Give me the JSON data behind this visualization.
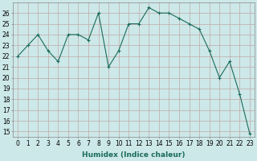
{
  "x": [
    0,
    1,
    2,
    3,
    4,
    5,
    6,
    7,
    8,
    9,
    10,
    11,
    12,
    13,
    14,
    15,
    16,
    17,
    18,
    19,
    20,
    21,
    22,
    23
  ],
  "y": [
    22,
    23,
    24,
    22.5,
    21.5,
    24,
    24,
    23.5,
    26,
    21,
    22.5,
    25,
    25,
    26.5,
    26,
    26,
    25.5,
    25,
    24.5,
    22.5,
    20,
    21.5,
    18.5,
    14.8
  ],
  "line_color": "#1a6b5a",
  "marker": "+",
  "bg_color": "#cde8e8",
  "grid_color": "#c0a8a8",
  "xlabel": "Humidex (Indice chaleur)",
  "ylabel_ticks": [
    15,
    16,
    17,
    18,
    19,
    20,
    21,
    22,
    23,
    24,
    25,
    26
  ],
  "ylim": [
    14.5,
    27.0
  ],
  "xlim": [
    -0.5,
    23.5
  ],
  "tick_fontsize": 5.5,
  "label_fontsize": 6.5,
  "label_fontweight": "bold"
}
